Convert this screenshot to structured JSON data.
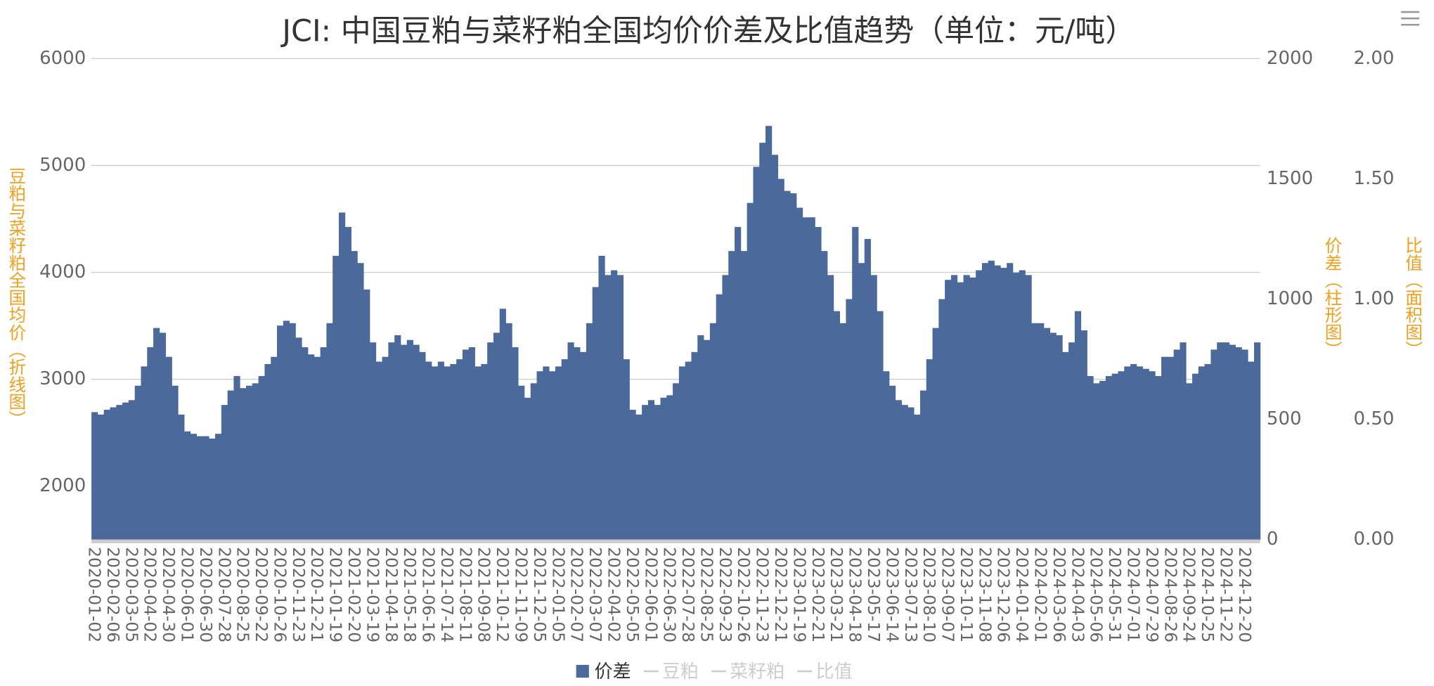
{
  "chart_data": {
    "type": "bar",
    "title": "JCI: 中国豆粕与菜籽粕全国均价价差及比值趋势（单位：元/吨）",
    "ylabel": "豆粕与菜籽粕全国均价（折线图）",
    "y2label": "价差（柱形图）",
    "y3label": "比值（面积图）",
    "ylim": [
      1500,
      6000
    ],
    "yticks": [
      2000,
      3000,
      4000,
      5000,
      6000
    ],
    "y2lim": [
      0,
      2000
    ],
    "y2ticks": [
      0,
      500,
      1000,
      1500,
      2000
    ],
    "y3lim": [
      0,
      2
    ],
    "y3ticks": [
      {
        "value": 0,
        "label": "0.00"
      },
      {
        "value": 0.5,
        "label": "0.50"
      },
      {
        "value": 1,
        "label": "1.00"
      },
      {
        "value": 1.5,
        "label": "1.50"
      },
      {
        "value": 2,
        "label": "2.00"
      }
    ],
    "grid": true,
    "legend": "bottom",
    "categories": [
      "2020-01-02",
      null,
      null,
      "2020-02-06",
      null,
      null,
      "2020-03-05",
      null,
      null,
      "2020-04-02",
      null,
      null,
      "2020-04-30",
      null,
      null,
      "2020-06-01",
      null,
      null,
      "2020-06-30",
      null,
      null,
      "2020-07-28",
      null,
      null,
      "2020-08-25",
      null,
      null,
      "2020-09-22",
      null,
      null,
      "2020-10-26",
      null,
      null,
      "2020-11-23",
      null,
      null,
      "2020-12-21",
      null,
      null,
      "2021-01-19",
      null,
      null,
      "2021-02-20",
      null,
      null,
      "2021-03-19",
      null,
      null,
      "2021-04-18",
      null,
      null,
      "2021-05-18",
      null,
      null,
      "2021-06-16",
      null,
      null,
      "2021-07-14",
      null,
      null,
      "2021-08-11",
      null,
      null,
      "2021-09-08",
      null,
      null,
      "2021-10-12",
      null,
      null,
      "2021-11-09",
      null,
      null,
      "2021-12-05",
      null,
      null,
      "2022-01-05",
      null,
      null,
      "2022-02-07",
      null,
      null,
      "2022-03-07",
      null,
      null,
      "2022-04-02",
      null,
      null,
      "2022-05-05",
      null,
      null,
      "2022-06-01",
      null,
      null,
      "2022-06-30",
      null,
      null,
      "2022-07-28",
      null,
      null,
      "2022-08-25",
      null,
      null,
      "2022-09-23",
      null,
      null,
      "2022-10-26",
      null,
      null,
      "2022-11-23",
      null,
      null,
      "2022-12-21",
      null,
      null,
      "2023-01-19",
      null,
      null,
      "2023-02-21",
      null,
      null,
      "2023-03-21",
      null,
      null,
      "2023-04-18",
      null,
      null,
      "2023-05-17",
      null,
      null,
      "2023-06-14",
      null,
      null,
      "2023-07-13",
      null,
      null,
      "2023-08-10",
      null,
      null,
      "2023-09-07",
      null,
      null,
      "2023-10-11",
      null,
      null,
      "2023-11-08",
      null,
      null,
      "2023-12-06",
      null,
      null,
      "2024-01-04",
      null,
      null,
      "2024-02-01",
      null,
      null,
      "2024-03-06",
      null,
      null,
      "2024-04-03",
      null,
      null,
      "2024-05-06",
      null,
      null,
      "2024-05-31",
      null,
      null,
      "2024-07-01",
      null,
      null,
      "2024-07-29",
      null,
      null,
      "2024-08-26",
      null,
      null,
      "2024-09-24",
      null,
      null,
      "2024-10-25",
      null,
      null,
      "2024-11-22",
      null,
      null,
      "2024-12-20",
      null,
      null
    ],
    "series": [
      {
        "name": "价差",
        "color": "#4b6a9b",
        "axis": "y2",
        "values": [
          530,
          520,
          540,
          550,
          560,
          570,
          580,
          640,
          720,
          800,
          880,
          860,
          760,
          640,
          520,
          450,
          440,
          430,
          430,
          420,
          440,
          560,
          620,
          680,
          630,
          640,
          650,
          680,
          730,
          760,
          890,
          910,
          900,
          840,
          800,
          770,
          760,
          800,
          900,
          1180,
          1360,
          1300,
          1200,
          1150,
          1040,
          820,
          740,
          760,
          820,
          850,
          810,
          830,
          810,
          780,
          740,
          720,
          740,
          720,
          730,
          750,
          790,
          800,
          720,
          730,
          820,
          860,
          960,
          900,
          800,
          640,
          590,
          650,
          700,
          720,
          700,
          720,
          750,
          820,
          800,
          780,
          900,
          1050,
          1180,
          1100,
          1120,
          1100,
          750,
          540,
          520,
          560,
          580,
          560,
          590,
          600,
          650,
          720,
          740,
          780,
          850,
          830,
          900,
          1020,
          1100,
          1200,
          1300,
          1200,
          1400,
          1550,
          1650,
          1720,
          1600,
          1500,
          1450,
          1440,
          1380,
          1340,
          1340,
          1300,
          1200,
          1100,
          950,
          900,
          1000,
          1300,
          1150,
          1250,
          1100,
          950,
          700,
          640,
          580,
          560,
          550,
          520,
          620,
          750,
          880,
          1000,
          1080,
          1100,
          1070,
          1100,
          1090,
          1120,
          1150,
          1160,
          1140,
          1130,
          1150,
          1110,
          1120,
          1100,
          900,
          900,
          880,
          860,
          850,
          780,
          820,
          950,
          870,
          680,
          650,
          660,
          680,
          690,
          700,
          720,
          730,
          720,
          710,
          700,
          680,
          760,
          760,
          790,
          820,
          650,
          690,
          720,
          730,
          790,
          820,
          820,
          810,
          800,
          790,
          740,
          820
        ]
      },
      {
        "name": "豆粕",
        "color": "#cccccc"
      },
      {
        "name": "菜籽粕",
        "color": "#cccccc"
      },
      {
        "name": "比值",
        "color": "#cccccc"
      }
    ]
  }
}
